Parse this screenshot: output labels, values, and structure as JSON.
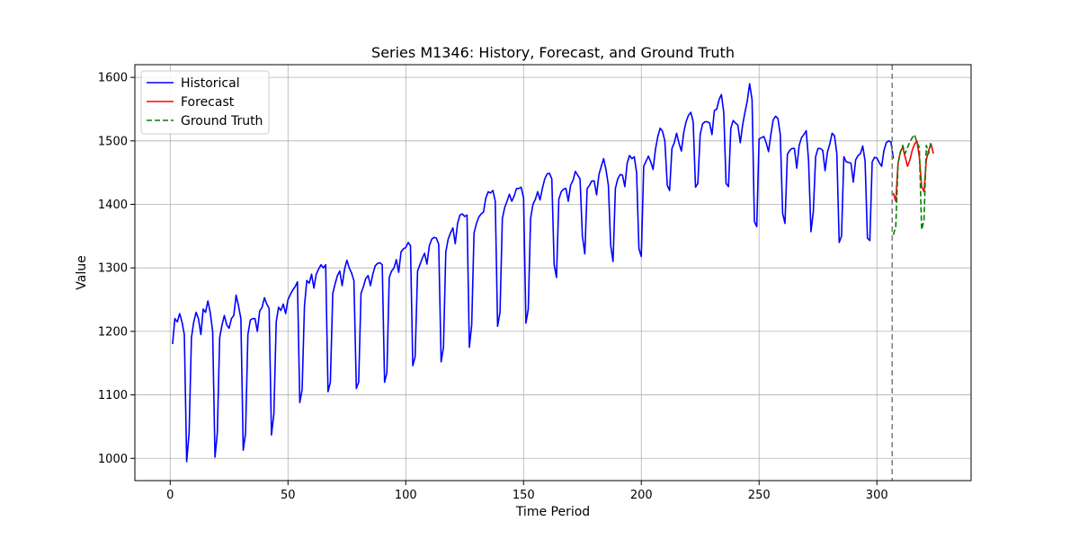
{
  "chart_data": {
    "type": "line",
    "title": "Series M1346: History, Forecast, and Ground Truth",
    "xlabel": "Time Period",
    "ylabel": "Value",
    "xlim": [
      -15,
      340
    ],
    "ylim": [
      965,
      1620
    ],
    "xticks": [
      0,
      50,
      100,
      150,
      200,
      250,
      300
    ],
    "yticks": [
      1000,
      1100,
      1200,
      1300,
      1400,
      1500,
      1600
    ],
    "grid": true,
    "legend_position": "top-left",
    "forecast_start": 307,
    "series": [
      {
        "name": "Historical",
        "color": "#0000ff",
        "style": "solid",
        "x_start": 1,
        "values": [
          1180,
          1220,
          1215,
          1228,
          1215,
          1195,
          995,
          1040,
          1190,
          1215,
          1230,
          1220,
          1195,
          1235,
          1230,
          1248,
          1230,
          1200,
          1002,
          1040,
          1190,
          1210,
          1225,
          1210,
          1205,
          1220,
          1225,
          1257,
          1240,
          1220,
          1013,
          1040,
          1195,
          1218,
          1220,
          1220,
          1200,
          1232,
          1238,
          1253,
          1243,
          1236,
          1037,
          1070,
          1215,
          1238,
          1233,
          1243,
          1228,
          1250,
          1258,
          1265,
          1270,
          1278,
          1088,
          1108,
          1240,
          1280,
          1276,
          1290,
          1268,
          1290,
          1298,
          1305,
          1300,
          1305,
          1105,
          1120,
          1260,
          1275,
          1288,
          1295,
          1272,
          1298,
          1312,
          1300,
          1292,
          1280,
          1110,
          1120,
          1260,
          1270,
          1283,
          1288,
          1272,
          1290,
          1303,
          1307,
          1308,
          1305,
          1120,
          1135,
          1285,
          1295,
          1300,
          1313,
          1293,
          1325,
          1330,
          1332,
          1340,
          1335,
          1146,
          1160,
          1295,
          1305,
          1315,
          1323,
          1306,
          1335,
          1345,
          1348,
          1347,
          1337,
          1152,
          1175,
          1325,
          1345,
          1355,
          1363,
          1338,
          1370,
          1383,
          1385,
          1381,
          1383,
          1175,
          1210,
          1355,
          1370,
          1380,
          1385,
          1388,
          1410,
          1420,
          1418,
          1422,
          1405,
          1208,
          1230,
          1378,
          1395,
          1405,
          1416,
          1405,
          1413,
          1425,
          1425,
          1427,
          1410,
          1213,
          1235,
          1378,
          1400,
          1408,
          1420,
          1407,
          1425,
          1440,
          1448,
          1449,
          1440,
          1305,
          1285,
          1408,
          1420,
          1424,
          1425,
          1405,
          1430,
          1438,
          1452,
          1446,
          1440,
          1350,
          1322,
          1425,
          1430,
          1437,
          1437,
          1415,
          1447,
          1460,
          1472,
          1455,
          1430,
          1335,
          1310,
          1425,
          1440,
          1447,
          1446,
          1428,
          1465,
          1477,
          1472,
          1475,
          1450,
          1330,
          1318,
          1460,
          1468,
          1476,
          1467,
          1455,
          1487,
          1507,
          1520,
          1515,
          1500,
          1430,
          1422,
          1488,
          1497,
          1512,
          1496,
          1484,
          1513,
          1530,
          1540,
          1545,
          1530,
          1427,
          1433,
          1510,
          1527,
          1530,
          1530,
          1528,
          1510,
          1548,
          1550,
          1565,
          1573,
          1545,
          1433,
          1428,
          1520,
          1532,
          1528,
          1525,
          1497,
          1525,
          1545,
          1563,
          1590,
          1565,
          1373,
          1365,
          1503,
          1505,
          1507,
          1497,
          1483,
          1510,
          1533,
          1539,
          1535,
          1510,
          1386,
          1370,
          1479,
          1485,
          1488,
          1488,
          1457,
          1493,
          1505,
          1510,
          1516,
          1470,
          1357,
          1388,
          1475,
          1488,
          1488,
          1485,
          1453,
          1482,
          1495,
          1512,
          1508,
          1480,
          1340,
          1350,
          1475,
          1467,
          1466,
          1465,
          1435,
          1470,
          1477,
          1480,
          1492,
          1468,
          1347,
          1343,
          1467,
          1474,
          1473,
          1466,
          1460,
          1485,
          1497,
          1500,
          1498,
          1472
        ]
      },
      {
        "name": "Forecast",
        "color": "#ff0000",
        "style": "solid",
        "x": [
          307,
          308,
          309,
          310,
          311,
          312,
          313,
          314,
          315,
          316,
          317,
          318,
          319,
          320,
          321,
          322,
          323,
          324
        ],
        "values": [
          1418,
          1405,
          1465,
          1483,
          1490,
          1475,
          1460,
          1470,
          1485,
          1495,
          1500,
          1475,
          1428,
          1420,
          1470,
          1485,
          1495,
          1480
        ]
      },
      {
        "name": "Ground Truth",
        "color": "#008000",
        "style": "dashed",
        "x": [
          307,
          308,
          309,
          310,
          311,
          312,
          313,
          314,
          315,
          316,
          317,
          318,
          319,
          320,
          321,
          322,
          323
        ],
        "values": [
          1352,
          1365,
          1465,
          1482,
          1493,
          1480,
          1490,
          1498,
          1505,
          1510,
          1497,
          1490,
          1360,
          1375,
          1493,
          1480,
          1500
        ]
      }
    ]
  }
}
